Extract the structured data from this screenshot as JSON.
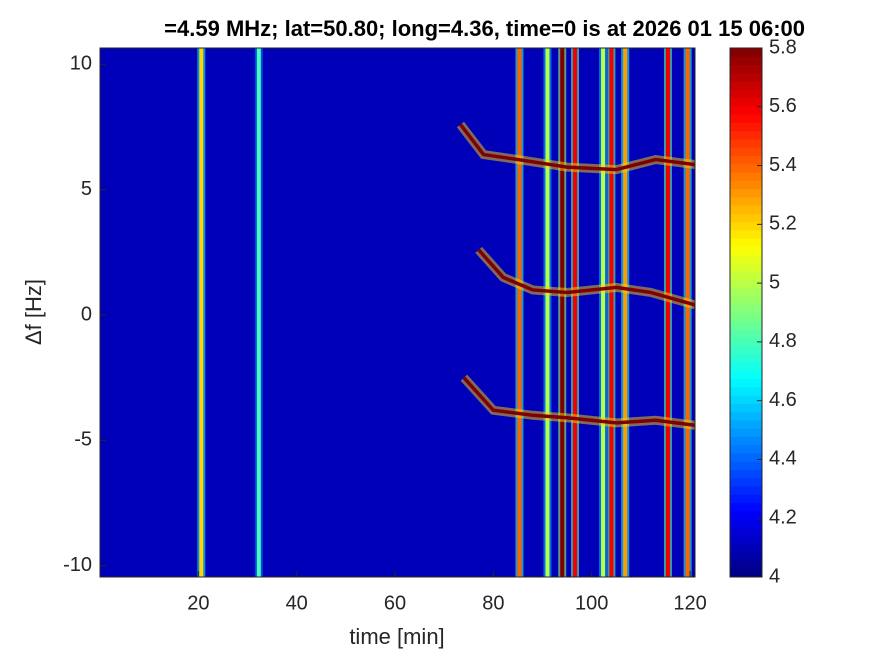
{
  "chart_data": {
    "type": "spectrogram",
    "title": "=4.59 MHz;  lat=50.80; long=4.36, time=0 is at 2026 01 15 06:00",
    "x_label": "time [min]",
    "y_label": "Δf [Hz]",
    "xlim": [
      0,
      121
    ],
    "xticks": [
      20,
      40,
      60,
      80,
      100,
      120
    ],
    "ylim": [
      -10.45,
      10.65
    ],
    "yticks": [
      -10,
      -5,
      0,
      5,
      10
    ],
    "colormap": "jet",
    "clim": [
      4,
      5.8
    ],
    "cticks": [
      4,
      4.2,
      4.4,
      4.6,
      4.8,
      5,
      5.2,
      5.4,
      5.6,
      5.8
    ],
    "background": 4.1,
    "streaks": [
      {
        "x": 20.6,
        "level": 5.2
      },
      {
        "x": 32.3,
        "level": 4.8
      },
      {
        "x": 85.3,
        "level": 5.4
      },
      {
        "x": 91,
        "level": 5.0
      },
      {
        "x": 94,
        "level": 5.8
      },
      {
        "x": 96.6,
        "level": 5.6
      },
      {
        "x": 102.3,
        "level": 5.0
      },
      {
        "x": 104,
        "level": 5.6
      },
      {
        "x": 106.8,
        "level": 5.3
      },
      {
        "x": 115.5,
        "level": 5.6
      },
      {
        "x": 119.5,
        "level": 5.4
      }
    ],
    "traces": [
      {
        "x": [
          73.3,
          78,
          85,
          95,
          105,
          113,
          121
        ],
        "y": [
          7.6,
          6.4,
          6.2,
          5.9,
          5.8,
          6.2,
          6.0
        ]
      },
      {
        "x": [
          77,
          82,
          88,
          95,
          105,
          112,
          121
        ],
        "y": [
          2.6,
          1.5,
          1.0,
          0.9,
          1.1,
          0.9,
          0.4
        ]
      },
      {
        "x": [
          74,
          80,
          88,
          95,
          105,
          113,
          121
        ],
        "y": [
          -2.5,
          -3.8,
          -4.0,
          -4.1,
          -4.3,
          -4.2,
          -4.4
        ]
      }
    ]
  }
}
